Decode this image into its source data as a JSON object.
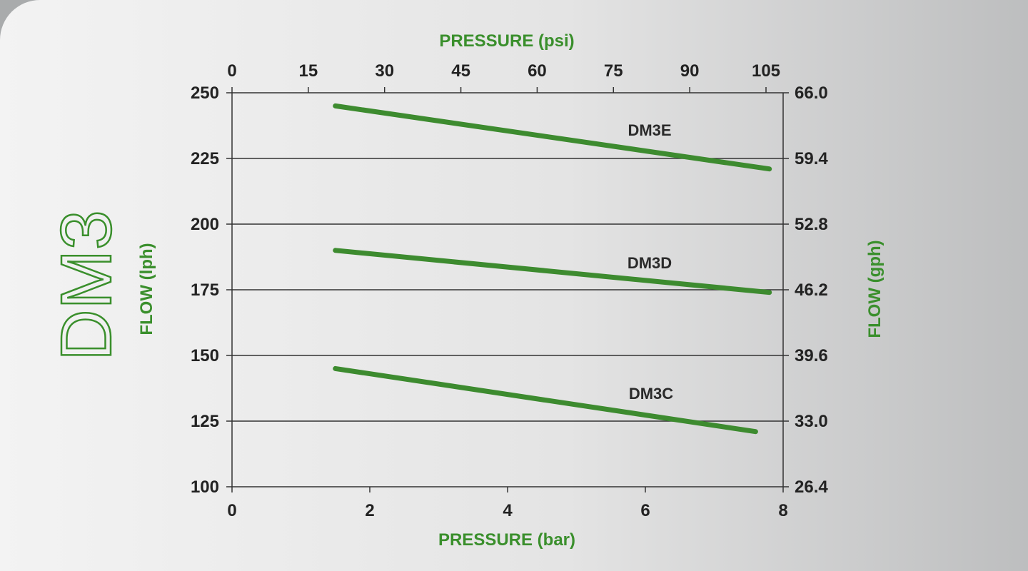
{
  "chart_data": {
    "type": "line",
    "title": "DM3",
    "x_bottom": {
      "label": "PRESSURE (bar)",
      "range": [
        0,
        8
      ],
      "ticks": [
        0,
        2,
        4,
        6,
        8
      ]
    },
    "x_top": {
      "label": "PRESSURE (psi)",
      "range": [
        0,
        105
      ],
      "ticks": [
        "0",
        "15",
        "30",
        "45",
        "60",
        "75",
        "90",
        "105"
      ]
    },
    "y_left": {
      "label": "FLOW (lph)",
      "range": [
        100,
        250
      ],
      "ticks": [
        100,
        125,
        150,
        175,
        200,
        225,
        250
      ]
    },
    "y_right": {
      "label": "FLOW (gph)",
      "range": [
        26.4,
        66.0
      ],
      "ticks": [
        "26.4",
        "33.0",
        "39.6",
        "46.2",
        "52.8",
        "59.4",
        "66.0"
      ]
    },
    "grid": "horizontal",
    "series": [
      {
        "name": "DM3E",
        "x": [
          1.5,
          7.8
        ],
        "y": [
          245,
          221
        ]
      },
      {
        "name": "DM3D",
        "x": [
          1.5,
          7.8
        ],
        "y": [
          190,
          174
        ]
      },
      {
        "name": "DM3C",
        "x": [
          1.5,
          7.6
        ],
        "y": [
          145,
          121
        ]
      }
    ]
  },
  "colors": {
    "accent": "#3a8f2c",
    "line": "#3d8b2f",
    "text": "#222222",
    "grid": "#333333"
  }
}
